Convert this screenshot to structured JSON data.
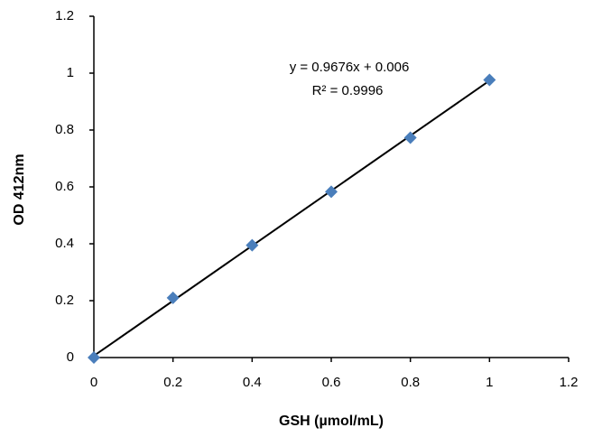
{
  "chart_data": {
    "type": "scatter",
    "x_label": "GSH (µmol/mL)",
    "y_label": "OD 412nm",
    "series": [
      {
        "name": "GSH",
        "color": "#4a7ebb",
        "x": [
          0,
          0.2,
          0.4,
          0.6,
          0.8,
          1
        ],
        "values": [
          0,
          0.21,
          0.395,
          0.583,
          0.773,
          0.976
        ]
      }
    ],
    "trendline": {
      "equation": "y = 0.9676x + 0.006",
      "r_squared": "R² = 0.9996",
      "slope": 0.9676,
      "intercept": 0.006,
      "color": "#000000"
    },
    "xlim": [
      0,
      1.2
    ],
    "xticks": [
      0,
      0.2,
      0.4,
      0.6,
      0.8,
      1,
      1.2
    ],
    "ylim": [
      0,
      1.2
    ],
    "yticks": [
      0,
      0.2,
      0.4,
      0.6,
      0.8,
      1,
      1.2
    ],
    "grid": false
  }
}
